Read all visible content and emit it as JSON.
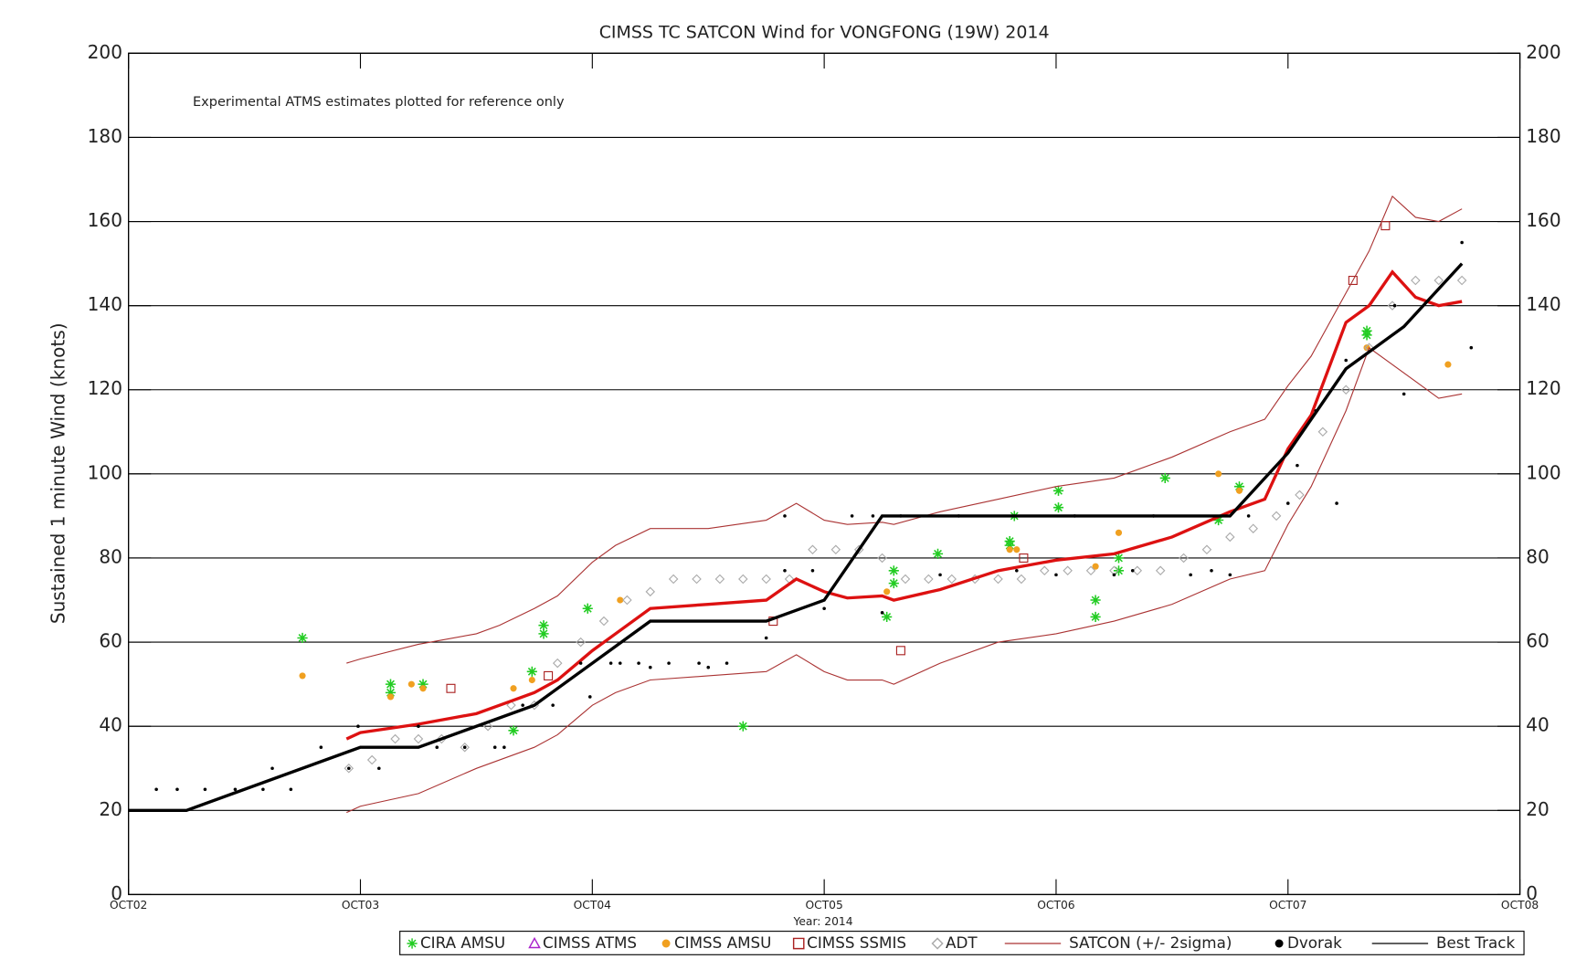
{
  "chart_data": {
    "type": "line",
    "title": "CIMSS TC SATCON Wind for VONGFONG (19W) 2014",
    "annotation": "Experimental ATMS estimates plotted for reference only",
    "x_label": "Year: 2014",
    "y_label": "Sustained 1 minute Wind (knots)",
    "xlim": [
      0,
      6
    ],
    "xticks": [
      {
        "value": 0,
        "label": "OCT02"
      },
      {
        "value": 1,
        "label": "OCT03"
      },
      {
        "value": 2,
        "label": "OCT04"
      },
      {
        "value": 3,
        "label": "OCT05"
      },
      {
        "value": 4,
        "label": "OCT06"
      },
      {
        "value": 5,
        "label": "OCT07"
      },
      {
        "value": 6,
        "label": "OCT08"
      }
    ],
    "ylim": [
      0,
      200
    ],
    "yticks": [
      0,
      20,
      40,
      60,
      80,
      100,
      120,
      140,
      160,
      180,
      200
    ],
    "grid": true,
    "series": [
      {
        "name": "CIRA AMSU",
        "marker": "asterisk",
        "color": "#22cc22",
        "x": [
          0.75,
          1.13,
          1.13,
          1.27,
          1.66,
          1.74,
          1.79,
          1.79,
          1.98,
          2.65,
          3.3,
          3.3,
          3.27,
          3.49,
          3.8,
          3.8,
          3.82,
          4.01,
          4.01,
          4.17,
          4.17,
          4.27,
          4.27,
          4.47,
          4.7,
          4.79,
          5.34,
          5.34
        ],
        "values": [
          61,
          50,
          48,
          50,
          39,
          53,
          64,
          62,
          68,
          40,
          77,
          74,
          66,
          81,
          84,
          83,
          90,
          96,
          92,
          70,
          66,
          80,
          77,
          99,
          89,
          97,
          134,
          133
        ]
      },
      {
        "name": "CIMSS ATMS",
        "marker": "triangle",
        "color": "#aa22cc",
        "x": [],
        "values": []
      },
      {
        "name": "CIMSS AMSU",
        "marker": "dot",
        "color": "#f0a020",
        "x": [
          0.75,
          1.13,
          1.22,
          1.27,
          1.66,
          1.74,
          2.12,
          3.27,
          3.8,
          3.83,
          4.17,
          4.27,
          4.7,
          4.79,
          5.34,
          5.69
        ],
        "values": [
          52,
          47,
          50,
          49,
          49,
          51,
          70,
          72,
          82,
          82,
          78,
          86,
          100,
          96,
          130,
          126
        ]
      },
      {
        "name": "CIMSS SSMIS",
        "marker": "square",
        "color": "#aa2222",
        "x": [
          1.39,
          1.81,
          2.78,
          3.33,
          3.86,
          5.28,
          5.42
        ],
        "values": [
          49,
          52,
          65,
          58,
          80,
          146,
          159
        ]
      },
      {
        "name": "ADT",
        "marker": "diamond",
        "color": "#aaaaaa",
        "x": [
          0.95,
          1.05,
          1.15,
          1.25,
          1.35,
          1.45,
          1.55,
          1.65,
          1.75,
          1.85,
          1.95,
          2.05,
          2.15,
          2.25,
          2.35,
          2.45,
          2.55,
          2.65,
          2.75,
          2.85,
          2.95,
          3.05,
          3.15,
          3.25,
          3.35,
          3.45,
          3.55,
          3.65,
          3.75,
          3.85,
          3.95,
          4.05,
          4.15,
          4.25,
          4.35,
          4.45,
          4.55,
          4.65,
          4.75,
          4.85,
          4.95,
          5.05,
          5.15,
          5.25,
          5.35,
          5.45,
          5.55,
          5.65,
          5.75
        ],
        "values": [
          30,
          32,
          37,
          37,
          37,
          35,
          40,
          45,
          45,
          55,
          60,
          65,
          70,
          72,
          75,
          75,
          75,
          75,
          75,
          75,
          82,
          82,
          82,
          80,
          75,
          75,
          75,
          75,
          75,
          75,
          77,
          77,
          77,
          77,
          77,
          77,
          80,
          82,
          85,
          87,
          90,
          95,
          110,
          120,
          130,
          140,
          146,
          146,
          146
        ]
      },
      {
        "name": "SATCON (+/- 2sigma)",
        "marker": "band",
        "color": "#dd1111",
        "band_color": "#aa3333",
        "x": [
          0.94,
          1.0,
          1.25,
          1.5,
          1.6,
          1.75,
          1.85,
          2.0,
          2.1,
          2.25,
          2.5,
          2.75,
          2.88,
          3.0,
          3.1,
          3.25,
          3.3,
          3.5,
          3.75,
          4.0,
          4.25,
          4.5,
          4.75,
          4.9,
          5.0,
          5.1,
          5.25,
          5.35,
          5.45,
          5.55,
          5.65,
          5.75
        ],
        "values": [
          37,
          38.5,
          40.5,
          43,
          45,
          48,
          51,
          58,
          62,
          68,
          69,
          70,
          75,
          72,
          70.5,
          71,
          70,
          72.5,
          77,
          79.5,
          81,
          85,
          91,
          94,
          106,
          114,
          136,
          140,
          148,
          142,
          140,
          141
        ],
        "upper": [
          55,
          56,
          59.5,
          62,
          64,
          68,
          71,
          79,
          83,
          87,
          87,
          89,
          93,
          89,
          88,
          88.5,
          88,
          91,
          94,
          97,
          99,
          104,
          110,
          113,
          121,
          128,
          143,
          153,
          166,
          161,
          160,
          163
        ],
        "lower": [
          19.5,
          21,
          24,
          30,
          32,
          35,
          38,
          45,
          48,
          51,
          52,
          53,
          57,
          53,
          51,
          51,
          50,
          55,
          60,
          62,
          65,
          69,
          75,
          77,
          88,
          97,
          115,
          130,
          126,
          122,
          118,
          119
        ]
      },
      {
        "name": "Dvorak",
        "marker": "dot",
        "color": "#000000",
        "x": [
          0.12,
          0.21,
          0.33,
          0.46,
          0.58,
          0.62,
          0.7,
          0.83,
          0.95,
          0.99,
          1.08,
          1.25,
          1.33,
          1.45,
          1.58,
          1.62,
          1.7,
          1.83,
          1.95,
          1.99,
          2.08,
          2.12,
          2.2,
          2.25,
          2.33,
          2.46,
          2.5,
          2.58,
          2.75,
          2.83,
          2.83,
          2.95,
          3.0,
          3.12,
          3.21,
          3.25,
          3.33,
          3.5,
          3.58,
          3.83,
          4.0,
          4.08,
          4.25,
          4.33,
          4.42,
          4.58,
          4.67,
          4.75,
          4.83,
          5.0,
          5.04,
          5.12,
          5.21,
          5.25,
          5.46,
          5.5,
          5.75,
          5.79
        ],
        "values": [
          25,
          25,
          25,
          25,
          25,
          30,
          25,
          35,
          30,
          40,
          30,
          40,
          35,
          35,
          35,
          35,
          45,
          45,
          55,
          47,
          55,
          55,
          55,
          54,
          55,
          55,
          54,
          55,
          61,
          77,
          90,
          77,
          68,
          90,
          90,
          67,
          90,
          76,
          90,
          77,
          76,
          90,
          76,
          77,
          90,
          76,
          77,
          76,
          90,
          93,
          102,
          115,
          93,
          127,
          140,
          119,
          155,
          130
        ]
      },
      {
        "name": "Best Track",
        "marker": "line",
        "color": "#000000",
        "x": [
          0,
          0.25,
          1.0,
          1.25,
          1.75,
          2.25,
          2.75,
          3.0,
          3.25,
          4.75,
          5.0,
          5.25,
          5.5,
          5.75
        ],
        "values": [
          20,
          20,
          35,
          35,
          45,
          65,
          65,
          70,
          90,
          90,
          105,
          125,
          135,
          150
        ]
      }
    ]
  }
}
